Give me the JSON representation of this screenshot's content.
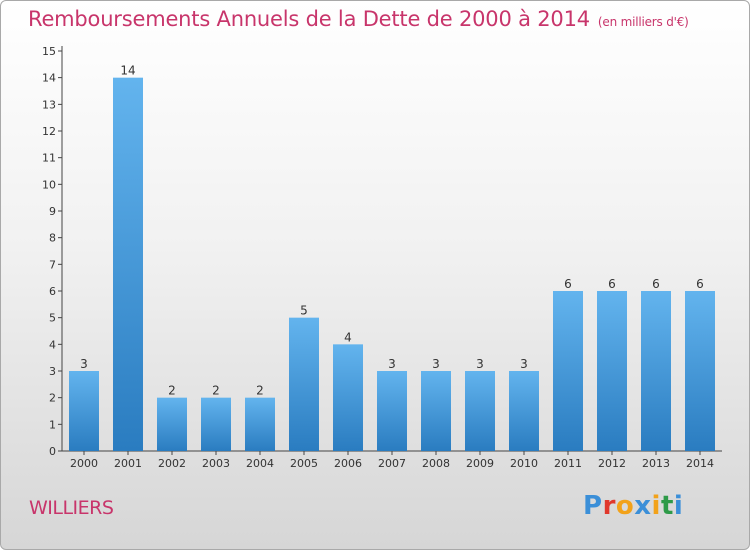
{
  "title": "Remboursements Annuels de la Dette de 2000 à 2014",
  "subtitle": "(en milliers d'€)",
  "commune": "WILLIERS",
  "logo": {
    "letters": [
      "P",
      "r",
      "o",
      "x",
      "i",
      "t",
      "i"
    ],
    "colors": [
      "#3b8fd8",
      "#e0382c",
      "#f2a21a",
      "#3b8fd8",
      "#f2a21a",
      "#2e9a48",
      "#3b8fd8"
    ]
  },
  "colors": {
    "accent": "#c8356b",
    "bar_light": "#63b4ee",
    "bar_dark": "#2a7cc0"
  },
  "chart_data": {
    "type": "bar",
    "categories": [
      "2000",
      "2001",
      "2002",
      "2003",
      "2004",
      "2005",
      "2006",
      "2007",
      "2008",
      "2009",
      "2010",
      "2011",
      "2012",
      "2013",
      "2014"
    ],
    "values": [
      3,
      14,
      2,
      2,
      2,
      5,
      4,
      3,
      3,
      3,
      3,
      6,
      6,
      6,
      6
    ],
    "ylim": [
      0,
      15
    ],
    "yticks": [
      0,
      1,
      2,
      3,
      4,
      5,
      6,
      7,
      8,
      9,
      10,
      11,
      12,
      13,
      14,
      15
    ],
    "data_labels": true,
    "grid": false
  }
}
